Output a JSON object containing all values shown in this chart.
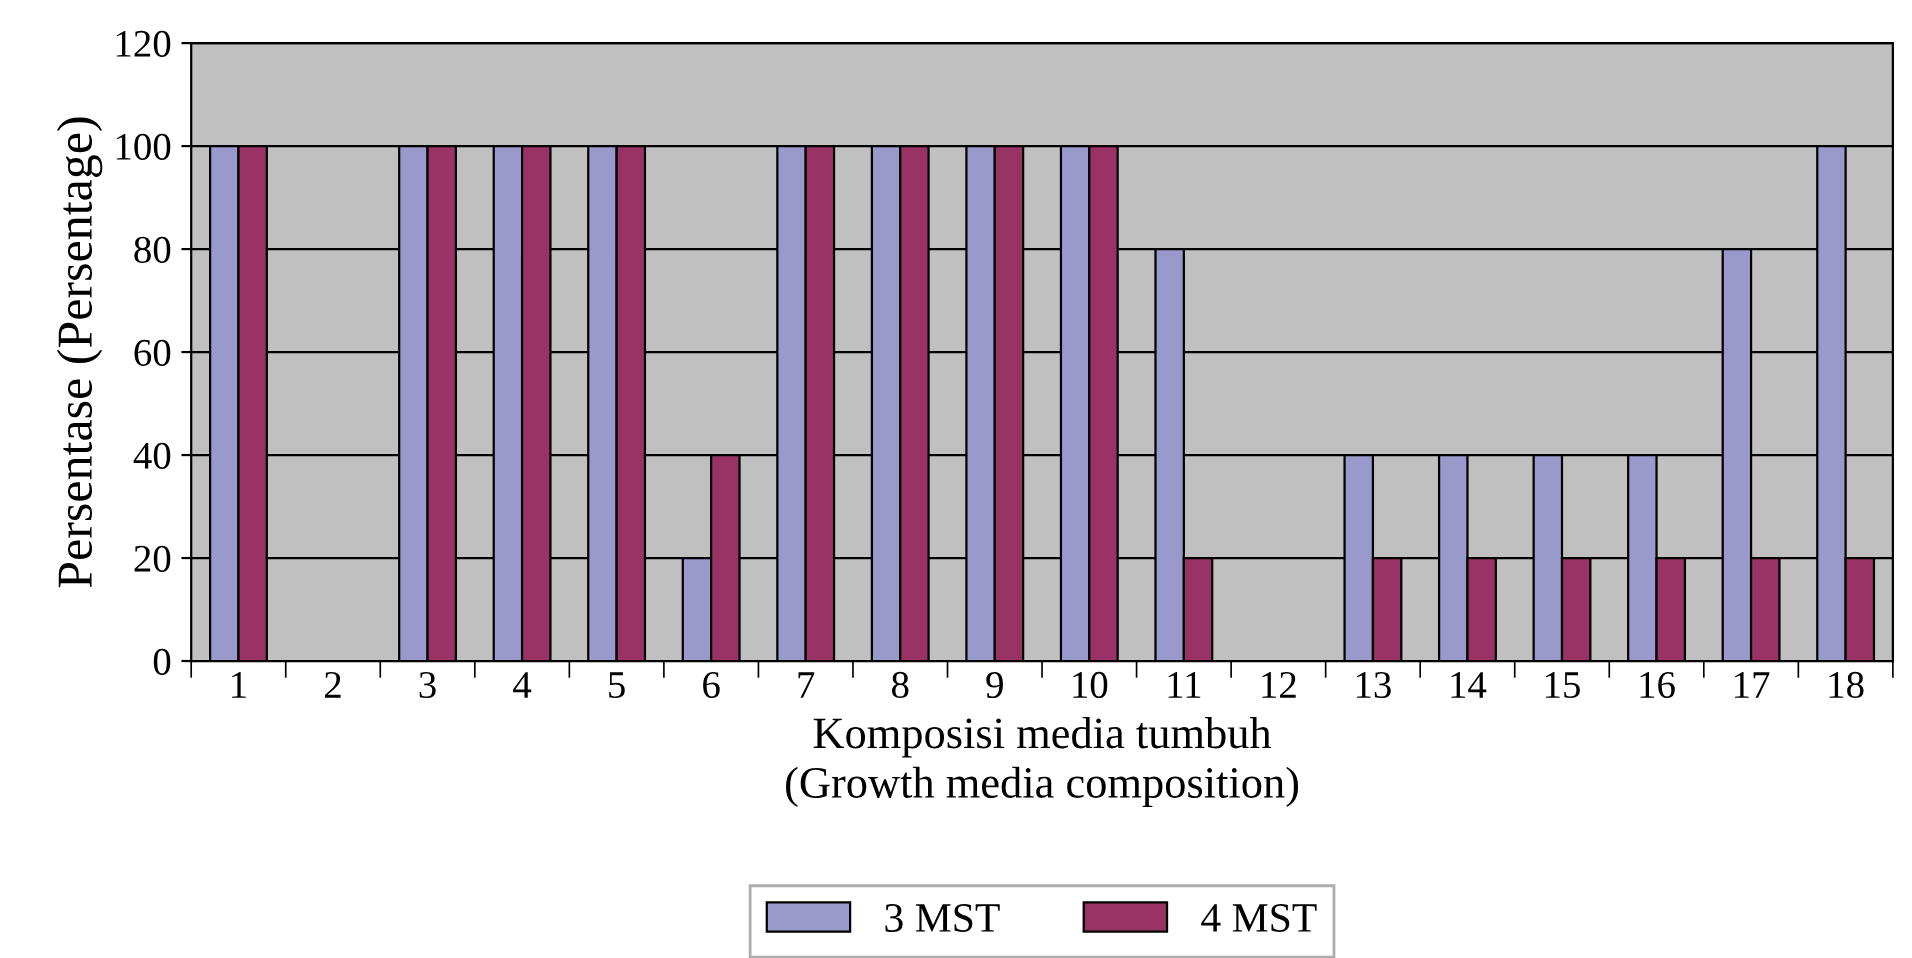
{
  "chart_data": {
    "type": "bar",
    "xlabel": "Komposisi media tumbuh\n(Growth media composition)",
    "ylabel": "Persentase (Persentage)",
    "categories": [
      "1",
      "2",
      "3",
      "4",
      "5",
      "6",
      "7",
      "8",
      "9",
      "10",
      "11",
      "12",
      "13",
      "14",
      "15",
      "16",
      "17",
      "18"
    ],
    "series": [
      {
        "name": "3 MST",
        "color": "#9999cc",
        "values": [
          100,
          null,
          100,
          100,
          100,
          20,
          100,
          100,
          100,
          100,
          80,
          null,
          40,
          40,
          40,
          40,
          80,
          100
        ]
      },
      {
        "name": "4 MST",
        "color": "#993366",
        "values": [
          100,
          null,
          100,
          100,
          100,
          40,
          100,
          100,
          100,
          100,
          20,
          null,
          20,
          20,
          20,
          20,
          20,
          20
        ]
      }
    ],
    "ylim": [
      0,
      120
    ],
    "yticks": [
      0,
      20,
      40,
      60,
      80,
      100,
      120
    ],
    "grid": "y",
    "legend": "bottom"
  }
}
